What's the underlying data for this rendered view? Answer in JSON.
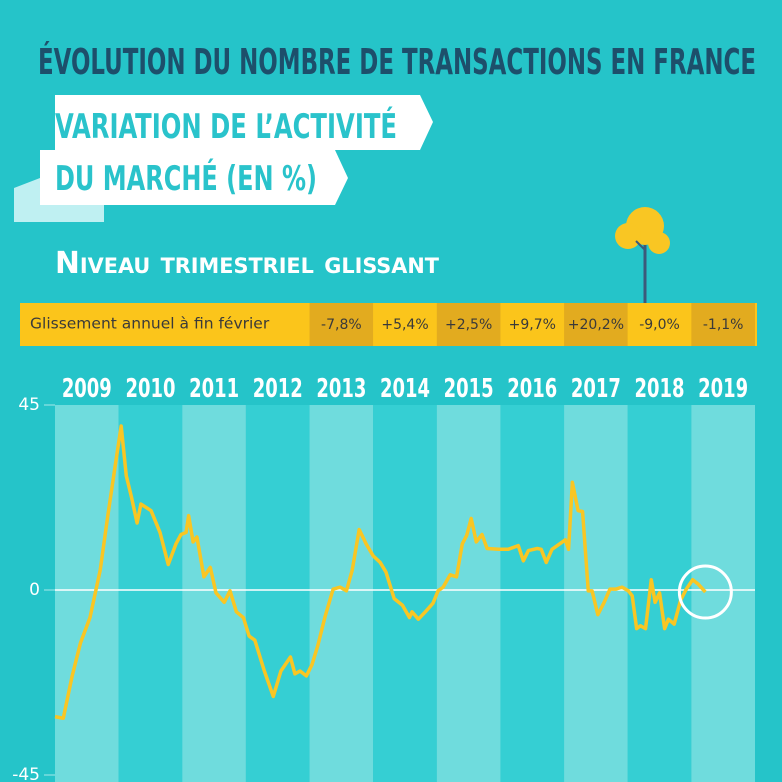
{
  "header": {
    "title": "ÉVOLUTION DU NOMBRE DE TRANSACTIONS EN FRANCE",
    "banner": [
      "VARIATION DE L’ACTIVITÉ",
      "DU MARCHÉ (EN %)"
    ],
    "subtitle": "Niveau trimestriel glissant"
  },
  "annual_change": {
    "label": "Glissement annuel à fin février",
    "values": [
      "-7,8%",
      "+5,4%",
      "+2,5%",
      "+9,7%",
      "+20,2%",
      "-9,0%",
      "-1,1%"
    ]
  },
  "chart_data": {
    "type": "line",
    "years": [
      "2009",
      "2010",
      "2011",
      "2012",
      "2013",
      "2014",
      "2015",
      "2016",
      "2017",
      "2018",
      "2019"
    ],
    "x": [
      2009.0,
      2009.13,
      2009.27,
      2009.4,
      2009.55,
      2009.71,
      2009.83,
      2009.94,
      2010.04,
      2010.12,
      2010.2,
      2010.29,
      2010.35,
      2010.51,
      2010.65,
      2010.78,
      2010.9,
      2010.98,
      2011.06,
      2011.1,
      2011.17,
      2011.23,
      2011.34,
      2011.44,
      2011.53,
      2011.66,
      2011.75,
      2011.85,
      2011.96,
      2012.05,
      2012.14,
      2012.29,
      2012.43,
      2012.55,
      2012.7,
      2012.77,
      2012.85,
      2012.95,
      2013.04,
      2013.13,
      2013.24,
      2013.37,
      2013.48,
      2013.58,
      2013.67,
      2013.78,
      2013.89,
      2014.0,
      2014.11,
      2014.2,
      2014.33,
      2014.46,
      2014.57,
      2014.61,
      2014.71,
      2014.82,
      2014.94,
      2015.02,
      2015.1,
      2015.21,
      2015.31,
      2015.4,
      2015.47,
      2015.54,
      2015.62,
      2015.71,
      2015.79,
      2015.97,
      2016.12,
      2016.28,
      2016.36,
      2016.44,
      2016.58,
      2016.64,
      2016.72,
      2016.81,
      2016.91,
      2017.02,
      2017.07,
      2017.13,
      2017.22,
      2017.29,
      2017.38,
      2017.44,
      2017.53,
      2017.63,
      2017.72,
      2017.81,
      2017.91,
      2018.01,
      2018.07,
      2018.14,
      2018.2,
      2018.28,
      2018.37,
      2018.43,
      2018.5,
      2018.58,
      2018.64,
      2018.73,
      2018.83,
      2018.92,
      2019.02,
      2019.11,
      2019.22
    ],
    "values": [
      -30.8,
      -31.2,
      -20.9,
      -12.9,
      -6.7,
      4.8,
      18.1,
      29.6,
      39.9,
      27.8,
      22.7,
      16.3,
      20.9,
      19.3,
      14.0,
      6.2,
      11.2,
      13.5,
      14.0,
      18.1,
      11.7,
      12.9,
      3.2,
      5.5,
      -0.7,
      -3.0,
      -0.2,
      -5.3,
      -6.7,
      -11.2,
      -12.2,
      -19.7,
      -25.9,
      -19.7,
      -16.3,
      -20.4,
      -19.7,
      -20.9,
      -18.1,
      -13.5,
      -6.7,
      0.2,
      0.7,
      -0.2,
      4.8,
      14.7,
      11.2,
      8.3,
      6.7,
      4.4,
      -2.1,
      -3.7,
      -6.7,
      -5.3,
      -7.1,
      -5.3,
      -3.2,
      -0.2,
      0.7,
      3.7,
      3.2,
      11.2,
      13.3,
      17.4,
      11.7,
      13.5,
      10.1,
      9.9,
      9.9,
      10.8,
      7.1,
      9.6,
      10.1,
      9.9,
      6.7,
      9.9,
      11.0,
      12.2,
      9.9,
      26.2,
      19.3,
      19.1,
      -0.2,
      -0.2,
      -6.0,
      -3.0,
      0.2,
      0.2,
      0.7,
      -0.2,
      -1.4,
      -9.4,
      -8.7,
      -9.4,
      2.5,
      -3.0,
      -0.7,
      -9.4,
      -7.1,
      -8.3,
      -2.5,
      0.2,
      2.5,
      1.4,
      -0.5
    ],
    "color": "#f9c623",
    "xlim": [
      2009,
      2020
    ],
    "ylim": [
      -45,
      45
    ],
    "yticks": [
      -45,
      0,
      45
    ]
  }
}
